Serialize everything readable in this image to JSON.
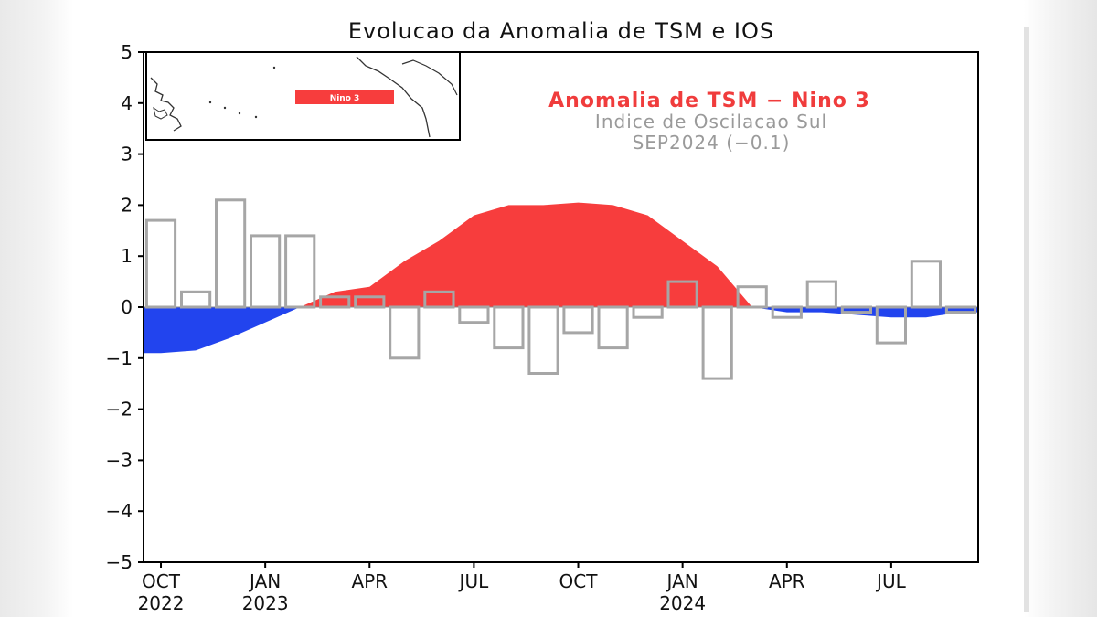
{
  "chart_data": {
    "type": "bar",
    "title": "Evolucao da Anomalia de TSM e IOS",
    "ylim": [
      -5,
      5
    ],
    "y_ticks": [
      5,
      4,
      3,
      2,
      1,
      0,
      -1,
      -2,
      -3,
      -4,
      -5
    ],
    "y_tick_labels": [
      "5",
      "4",
      "3",
      "2",
      "1",
      "0",
      "−1",
      "−2",
      "−3",
      "−4",
      "−5"
    ],
    "x_tick_labels": [
      {
        "month": "OCT",
        "year": "2022"
      },
      {
        "month": "JAN",
        "year": "2023"
      },
      {
        "month": "APR",
        "year": ""
      },
      {
        "month": "JUL",
        "year": ""
      },
      {
        "month": "OCT",
        "year": ""
      },
      {
        "month": "JAN",
        "year": "2024"
      },
      {
        "month": "APR",
        "year": ""
      },
      {
        "month": "JUL",
        "year": ""
      }
    ],
    "months": [
      "Oct 2022",
      "Nov 2022",
      "Dec 2022",
      "Jan 2023",
      "Feb 2023",
      "Mar 2023",
      "Apr 2023",
      "May 2023",
      "Jun 2023",
      "Jul 2023",
      "Aug 2023",
      "Sep 2023",
      "Oct 2023",
      "Nov 2023",
      "Dec 2023",
      "Jan 2024",
      "Feb 2024",
      "Mar 2024",
      "Apr 2024",
      "May 2024",
      "Jun 2024",
      "Jul 2024",
      "Aug 2024",
      "Sep 2024"
    ],
    "series": [
      {
        "name": "Anomalia de TSM - Nino 3",
        "type": "area",
        "values": [
          -0.9,
          -0.85,
          -0.6,
          -0.3,
          0.0,
          0.3,
          0.4,
          0.9,
          1.3,
          1.8,
          2.0,
          2.0,
          2.05,
          2.0,
          1.8,
          1.3,
          0.8,
          0.0,
          -0.1,
          -0.1,
          -0.15,
          -0.2,
          -0.2,
          -0.1
        ]
      },
      {
        "name": "Indice de Oscilacao Sul",
        "type": "bar",
        "values": [
          1.7,
          0.3,
          2.1,
          1.4,
          1.4,
          0.2,
          0.2,
          -1.0,
          0.3,
          -0.3,
          -0.8,
          -1.3,
          -0.5,
          -0.8,
          -0.2,
          0.5,
          -1.4,
          0.4,
          -0.2,
          0.5,
          -0.1,
          -0.7,
          0.9,
          -0.1
        ]
      }
    ],
    "legend": {
      "line1": "Anomalia de TSM − Nino 3",
      "line2": "Indice de Oscilacao Sul",
      "line3": "SEP2024 (−0.1)",
      "placement": "top-right"
    },
    "inset_map": {
      "label": "Nino 3"
    },
    "colors": {
      "positive_area": "#f73d3d",
      "negative_area": "#2244ee",
      "bar_outline": "#a6a6a6",
      "legend_main": "#f03c3c",
      "legend_sub": "#9a9a9a"
    }
  }
}
